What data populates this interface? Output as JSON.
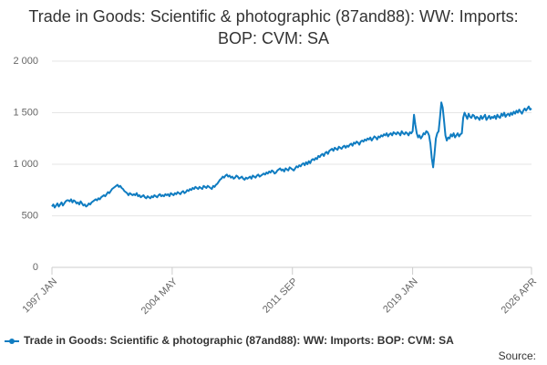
{
  "chart_data": {
    "type": "line",
    "title": "Trade in Goods: Scientific & photographic (87and88): WW: Imports: BOP: CVM: SA",
    "source": "Source:",
    "categories": [
      "1997 JAN",
      null,
      null,
      null,
      null,
      null,
      null,
      null,
      null,
      null,
      null,
      null,
      null,
      null,
      null,
      null,
      null,
      null,
      null,
      null,
      null,
      null,
      null,
      null,
      null,
      null,
      null,
      null,
      null,
      null,
      null,
      null,
      null,
      null,
      null,
      null,
      null,
      null,
      null,
      null,
      null,
      null,
      null,
      null,
      null,
      null,
      null,
      null,
      null,
      null,
      null,
      null,
      null,
      null,
      null,
      null,
      null,
      null,
      null,
      null,
      null,
      null,
      null,
      null,
      null,
      null,
      null,
      null,
      null,
      null,
      null,
      null,
      null,
      null,
      null,
      null,
      null,
      null,
      null,
      null,
      null,
      null,
      null,
      null,
      null,
      null,
      null,
      null,
      "2004 MAY",
      null,
      null,
      null,
      null,
      null,
      null,
      null,
      null,
      null,
      null,
      null,
      null,
      null,
      null,
      null,
      null,
      null,
      null,
      null,
      null,
      null,
      null,
      null,
      null,
      null,
      null,
      null,
      null,
      null,
      null,
      null,
      null,
      null,
      null,
      null,
      null,
      null,
      null,
      null,
      null,
      null,
      null,
      null,
      null,
      null,
      null,
      null,
      null,
      null,
      null,
      null,
      null,
      null,
      null,
      null,
      null,
      null,
      null,
      null,
      null,
      null,
      null,
      null,
      null,
      null,
      null,
      null,
      null,
      null,
      null,
      null,
      null,
      null,
      null,
      null,
      null,
      null,
      null,
      null,
      null,
      null,
      null,
      null,
      null,
      null,
      null,
      null,
      "2011 SEP",
      null,
      null,
      null,
      null,
      null,
      null,
      null,
      null,
      null,
      null,
      null,
      null,
      null,
      null,
      null,
      null,
      null,
      null,
      null,
      null,
      null,
      null,
      null,
      null,
      null,
      null,
      null,
      null,
      null,
      null,
      null,
      null,
      null,
      null,
      null,
      null,
      null,
      null,
      null,
      null,
      null,
      null,
      null,
      null,
      null,
      null,
      null,
      null,
      null,
      null,
      null,
      null,
      null,
      null,
      null,
      null,
      null,
      null,
      null,
      null,
      null,
      null,
      null,
      null,
      null,
      null,
      null,
      null,
      null,
      null,
      null,
      null,
      null,
      null,
      null,
      null,
      null,
      null,
      null,
      null,
      null,
      null,
      null,
      null,
      null,
      null,
      null,
      "2019 JAN",
      null,
      null,
      null,
      null,
      null,
      null,
      null,
      null,
      null,
      null,
      null,
      null,
      null,
      null,
      null,
      null,
      null,
      null,
      null,
      null,
      null,
      null,
      null,
      null,
      null,
      null,
      null,
      null,
      null,
      null,
      null,
      null,
      null,
      null,
      null,
      null,
      null,
      null,
      null,
      null,
      null,
      null,
      null,
      null,
      null,
      null,
      null,
      null,
      null,
      null,
      null,
      null,
      null,
      null,
      null,
      null,
      null,
      null,
      null,
      null,
      null,
      null,
      null,
      null,
      null,
      null,
      null,
      null,
      null,
      null,
      null,
      null,
      null,
      null,
      null,
      null,
      null,
      null,
      null,
      null,
      null,
      null,
      null,
      null,
      null,
      null,
      "2026 APR"
    ],
    "series": [
      {
        "name": "Trade in Goods: Scientific & photographic (87and88): WW: Imports: BOP: CVM: SA",
        "color": "#0f7cc1",
        "values": [
          590,
          610,
          580,
          600,
          620,
          590,
          610,
          630,
          600,
          620,
          640,
          650,
          650,
          640,
          660,
          630,
          650,
          640,
          620,
          630,
          610,
          640,
          620,
          600,
          610,
          590,
          600,
          620,
          610,
          630,
          640,
          650,
          660,
          650,
          670,
          660,
          680,
          690,
          700,
          690,
          710,
          730,
          720,
          740,
          760,
          770,
          780,
          790,
          800,
          780,
          790,
          770,
          760,
          740,
          730,
          720,
          700,
          720,
          710,
          700,
          710,
          700,
          720,
          690,
          700,
          680,
          690,
          700,
          680,
          670,
          690,
          680,
          670,
          690,
          680,
          700,
          690,
          680,
          700,
          710,
          690,
          700,
          690,
          710,
          700,
          710,
          690,
          720,
          710,
          700,
          720,
          710,
          730,
          720,
          710,
          730,
          740,
          720,
          730,
          750,
          740,
          760,
          750,
          770,
          760,
          780,
          770,
          760,
          780,
          770,
          760,
          790,
          780,
          770,
          790,
          780,
          770,
          760,
          790,
          780,
          800,
          810,
          830,
          850,
          860,
          880,
          870,
          890,
          900,
          880,
          890,
          870,
          880,
          860,
          870,
          890,
          880,
          860,
          870,
          880,
          860,
          850,
          870,
          860,
          870,
          880,
          860,
          890,
          880,
          870,
          890,
          900,
          880,
          890,
          900,
          910,
          900,
          920,
          910,
          930,
          920,
          940,
          930,
          910,
          920,
          940,
          950,
          960,
          940,
          950,
          930,
          960,
          950,
          940,
          970,
          960,
          950,
          940,
          960,
          980,
          970,
          990,
          980,
          1000,
          1010,
          990,
          1020,
          1000,
          1030,
          1010,
          1040,
          1050,
          1040,
          1060,
          1050,
          1080,
          1070,
          1090,
          1100,
          1080,
          1110,
          1120,
          1100,
          1130,
          1140,
          1150,
          1130,
          1160,
          1150,
          1140,
          1170,
          1160,
          1150,
          1170,
          1180,
          1160,
          1180,
          1170,
          1190,
          1200,
          1180,
          1210,
          1200,
          1220,
          1210,
          1190,
          1220,
          1230,
          1220,
          1240,
          1230,
          1250,
          1240,
          1260,
          1230,
          1250,
          1270,
          1260,
          1240,
          1270,
          1260,
          1280,
          1270,
          1290,
          1280,
          1300,
          1270,
          1290,
          1300,
          1280,
          1310,
          1300,
          1290,
          1310,
          1300,
          1280,
          1320,
          1300,
          1290,
          1310,
          1300,
          1280,
          1310,
          1300,
          1320,
          1480,
          1380,
          1300,
          1260,
          1280,
          1250,
          1270,
          1300,
          1290,
          1320,
          1310,
          1280,
          1200,
          1060,
          970,
          1100,
          1250,
          1300,
          1320,
          1450,
          1600,
          1550,
          1420,
          1280,
          1230,
          1260,
          1250,
          1290,
          1270,
          1300,
          1260,
          1280,
          1300,
          1270,
          1290,
          1300,
          1450,
          1500,
          1470,
          1440,
          1490,
          1460,
          1450,
          1480,
          1470,
          1440,
          1460,
          1450,
          1430,
          1470,
          1440,
          1460,
          1480,
          1430,
          1450,
          1470,
          1440,
          1460,
          1450,
          1470,
          1440,
          1480,
          1460,
          1450,
          1490,
          1470,
          1500,
          1460,
          1480,
          1490,
          1470,
          1500,
          1480,
          1510,
          1490,
          1520,
          1500,
          1530,
          1510,
          1490,
          1520,
          1540,
          1520,
          1540,
          1560,
          1530,
          1540
        ]
      }
    ],
    "ylim": [
      0,
      2000
    ],
    "yticks": [
      0,
      500,
      {
        "value": 1000,
        "label": "1 000"
      },
      {
        "value": 1500,
        "label": "1 500"
      },
      {
        "value": 2000,
        "label": "2 000"
      }
    ],
    "grid": true
  }
}
